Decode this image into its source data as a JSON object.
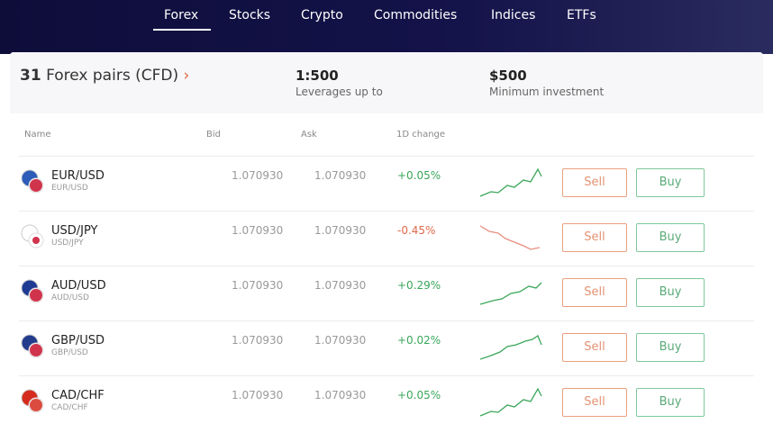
{
  "tabs": [
    "Forex",
    "Stocks",
    "Crypto",
    "Commodities",
    "Indices",
    "ETFs"
  ],
  "active_tab": 0,
  "summary": {
    "count": "31",
    "title": "Forex pairs (CFD)",
    "leverage": "1:500",
    "leverage_label": "Leverages up to",
    "minimum": "$500",
    "minimum_label": "Minimum investment"
  },
  "table": {
    "headers": [
      "Name",
      "Bid",
      "Ask",
      "1D change"
    ],
    "rows": [
      {
        "pair": "EUR/USD",
        "sub": "EUR/USD",
        "bid": "1.070930",
        "ask": "1.070930",
        "change": "+0.05%",
        "sell": "Sell",
        "buy": "Buy"
      },
      {
        "pair": "USD/JPY",
        "sub": "USD/JPY",
        "bid": "1.070930",
        "ask": "1.070930",
        "change": "-0.45%",
        "sell": "Sell",
        "buy": "Buy"
      },
      {
        "pair": "AUD/USD",
        "sub": "AUD/USD",
        "bid": "1.070930",
        "ask": "1.070930",
        "change": "+0.29%",
        "sell": "Sell",
        "buy": "Buy"
      },
      {
        "pair": "GBP/USD",
        "sub": "GBP/USD",
        "bid": "1.070930",
        "ask": "1.070930",
        "change": "+0.02%",
        "sell": "Sell",
        "buy": "Buy"
      },
      {
        "pair": "CAD/CHF",
        "sub": "CAD/CHF",
        "bid": "1.070930",
        "ask": "1.070930",
        "change": "+0.05%",
        "sell": "Sell",
        "buy": "Buy"
      }
    ]
  }
}
